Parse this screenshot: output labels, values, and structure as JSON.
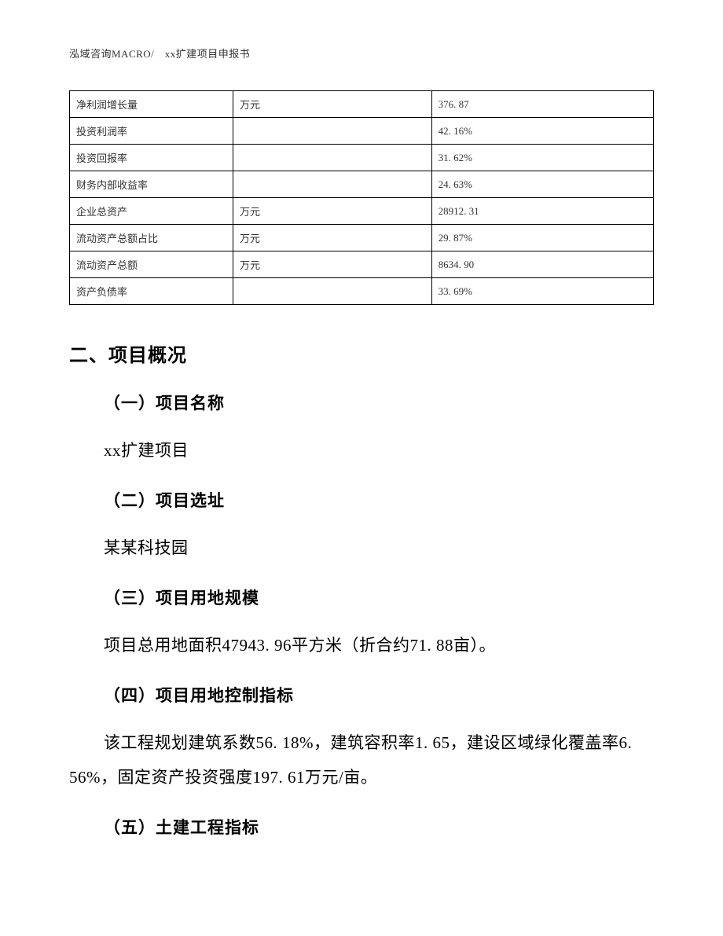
{
  "header": {
    "text": "泓域咨询MACRO/　xx扩建项目申报书"
  },
  "table": {
    "rows": [
      {
        "label": "净利润增长量",
        "unit": "万元",
        "value": "376. 87"
      },
      {
        "label": "投资利润率",
        "unit": "",
        "value": "42. 16%"
      },
      {
        "label": "投资回报率",
        "unit": "",
        "value": "31. 62%"
      },
      {
        "label": "财务内部收益率",
        "unit": "",
        "value": "24. 63%"
      },
      {
        "label": "企业总资产",
        "unit": "万元",
        "value": "28912. 31"
      },
      {
        "label": "流动资产总额占比",
        "unit": "万元",
        "value": "29. 87%"
      },
      {
        "label": "流动资产总额",
        "unit": "万元",
        "value": "8634. 90"
      },
      {
        "label": "资产负债率",
        "unit": "",
        "value": "33. 69%"
      }
    ],
    "border_color": "#000000",
    "font_size": 13
  },
  "section": {
    "title": "二、项目概况",
    "subsections": [
      {
        "heading": "（一）项目名称",
        "body": "xx扩建项目",
        "body_type": "indent"
      },
      {
        "heading": "（二）项目选址",
        "body": "某某科技园",
        "body_type": "indent"
      },
      {
        "heading": "（三）项目用地规模",
        "body": "项目总用地面积47943. 96平方米（折合约71. 88亩）。",
        "body_type": "indent"
      },
      {
        "heading": "（四）项目用地控制指标",
        "body": "该工程规划建筑系数56. 18%，建筑容积率1. 65，建设区域绿化覆盖率6. 56%，固定资产投资强度197. 61万元/亩。",
        "body_type": "wide"
      },
      {
        "heading": "（五）土建工程指标",
        "body": "",
        "body_type": "none"
      }
    ]
  },
  "styles": {
    "page_bg": "#ffffff",
    "text_color": "#000000",
    "heading_font": "SimHei",
    "body_font": "SimSun",
    "heading_fontsize": 24,
    "subheading_fontsize": 21,
    "body_fontsize": 21
  }
}
